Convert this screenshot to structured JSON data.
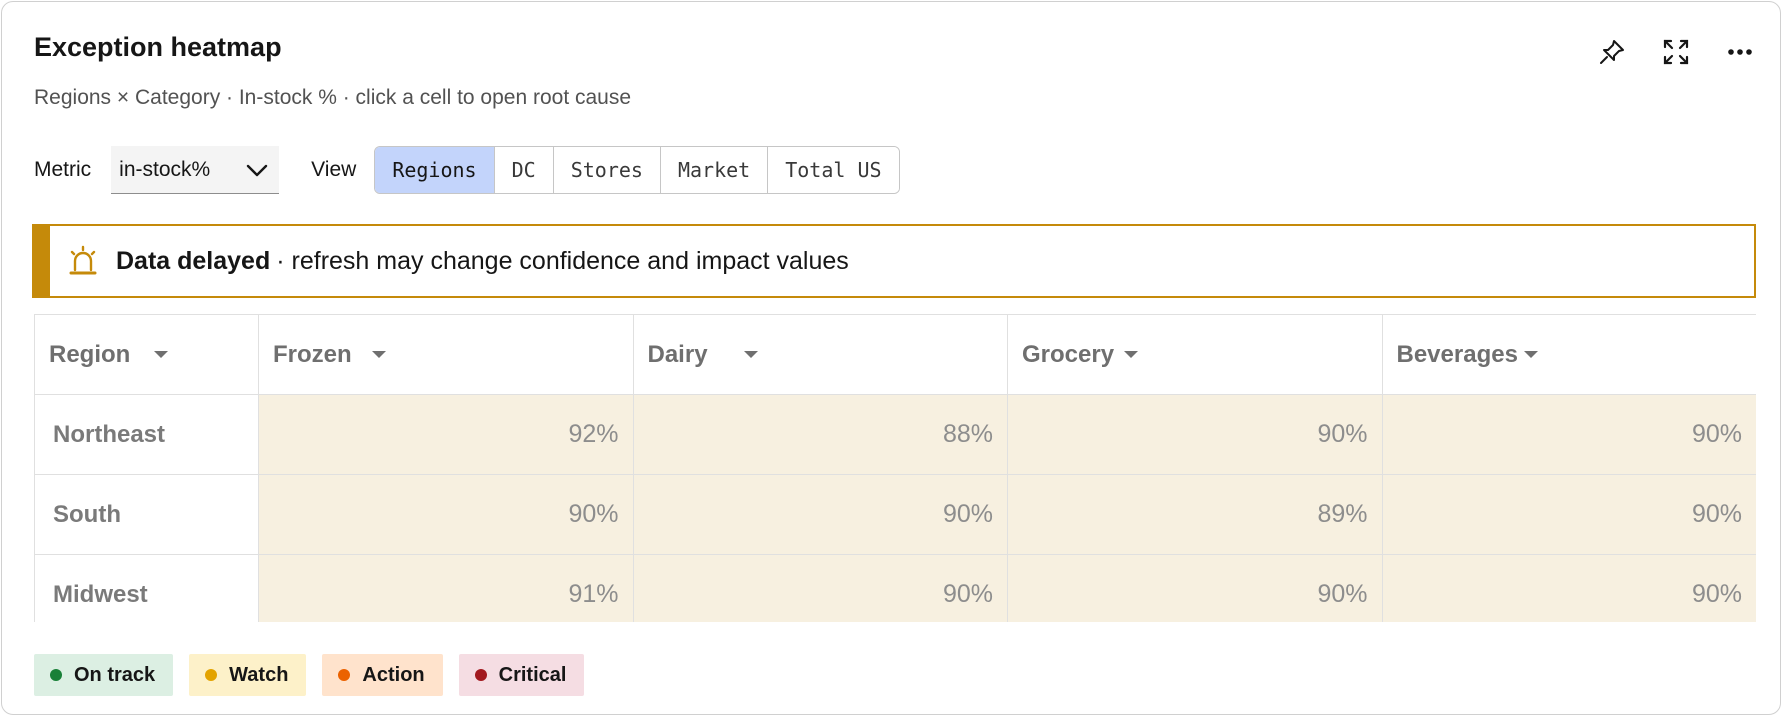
{
  "header": {
    "title": "Exception heatmap",
    "subtitle": "Regions × Category · In-stock % · click a cell to open root cause"
  },
  "actions": {
    "pin_icon": "pin-icon",
    "expand_icon": "expand-icon",
    "more_icon": "overflow-menu-icon"
  },
  "toolbar": {
    "metric_label": "Metric",
    "metric_value": "in-stock%",
    "view_label": "View",
    "views": [
      {
        "label": "Regions",
        "active": true
      },
      {
        "label": "DC",
        "active": false
      },
      {
        "label": "Stores",
        "active": false
      },
      {
        "label": "Market",
        "active": false
      },
      {
        "label": "Total US",
        "active": false
      }
    ]
  },
  "banner": {
    "icon": "alarm-bell-icon",
    "strong": "Data delayed",
    "text": "· refresh may change confidence and impact values",
    "color": "#c58a0a"
  },
  "heatmap": {
    "columns": [
      "Region",
      "Frozen",
      "Dairy",
      "Grocery",
      "Beverages"
    ],
    "rows": [
      {
        "region": "Northeast",
        "values": [
          "92%",
          "88%",
          "90%",
          "90%"
        ]
      },
      {
        "region": "South",
        "values": [
          "90%",
          "90%",
          "89%",
          "90%"
        ]
      },
      {
        "region": "Midwest",
        "values": [
          "91%",
          "90%",
          "90%",
          "90%"
        ]
      }
    ],
    "cell_color": "#f7f0e0"
  },
  "legend": [
    {
      "label": "On track",
      "bg": "#dcefe3",
      "dot": "#198038"
    },
    {
      "label": "Watch",
      "bg": "#fdf1c9",
      "dot": "#e3a300"
    },
    {
      "label": "Action",
      "bg": "#ffe3cc",
      "dot": "#eb6200"
    },
    {
      "label": "Critical",
      "bg": "#f5dde3",
      "dot": "#a2191f"
    }
  ]
}
